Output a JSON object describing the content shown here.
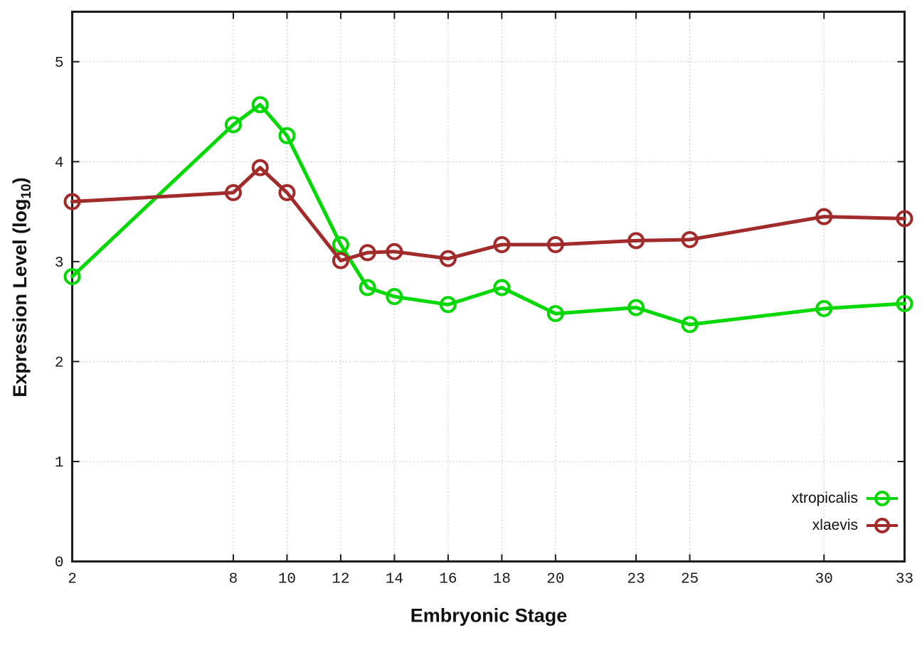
{
  "chart_data": {
    "type": "line",
    "title": "",
    "xlabel": "Embryonic Stage",
    "ylabel": "Expression Level (log10)",
    "ylabel_parts": {
      "prefix": "Expression Level (log",
      "sub": "10",
      "suffix": ")"
    },
    "x": [
      2,
      8,
      9,
      10,
      12,
      13,
      14,
      16,
      18,
      20,
      23,
      25,
      30,
      33
    ],
    "x_ticks": [
      2,
      8,
      10,
      12,
      14,
      16,
      18,
      20,
      23,
      25,
      30,
      33
    ],
    "y_ticks": [
      0,
      1,
      2,
      3,
      4,
      5
    ],
    "xlim": [
      2,
      33
    ],
    "ylim": [
      0,
      5.5
    ],
    "grid": true,
    "point_style": "open-circle",
    "legend_position": "inside-bottom-right",
    "series": [
      {
        "name": "xtropicalis",
        "color": "#00d800",
        "values": [
          2.85,
          4.37,
          4.57,
          4.26,
          3.17,
          2.74,
          2.65,
          2.57,
          2.74,
          2.48,
          2.54,
          2.37,
          2.53,
          2.58
        ]
      },
      {
        "name": "xlaevis",
        "color": "#a12a2a",
        "values": [
          3.6,
          3.69,
          3.94,
          3.69,
          3.01,
          3.09,
          3.1,
          3.03,
          3.17,
          3.17,
          3.21,
          3.22,
          3.45,
          3.43
        ]
      }
    ],
    "colors": {
      "background": "#ffffff",
      "border": "#1c1c1c",
      "grid": "#b8b8b8",
      "tick_text": "#1a1a1a"
    }
  }
}
